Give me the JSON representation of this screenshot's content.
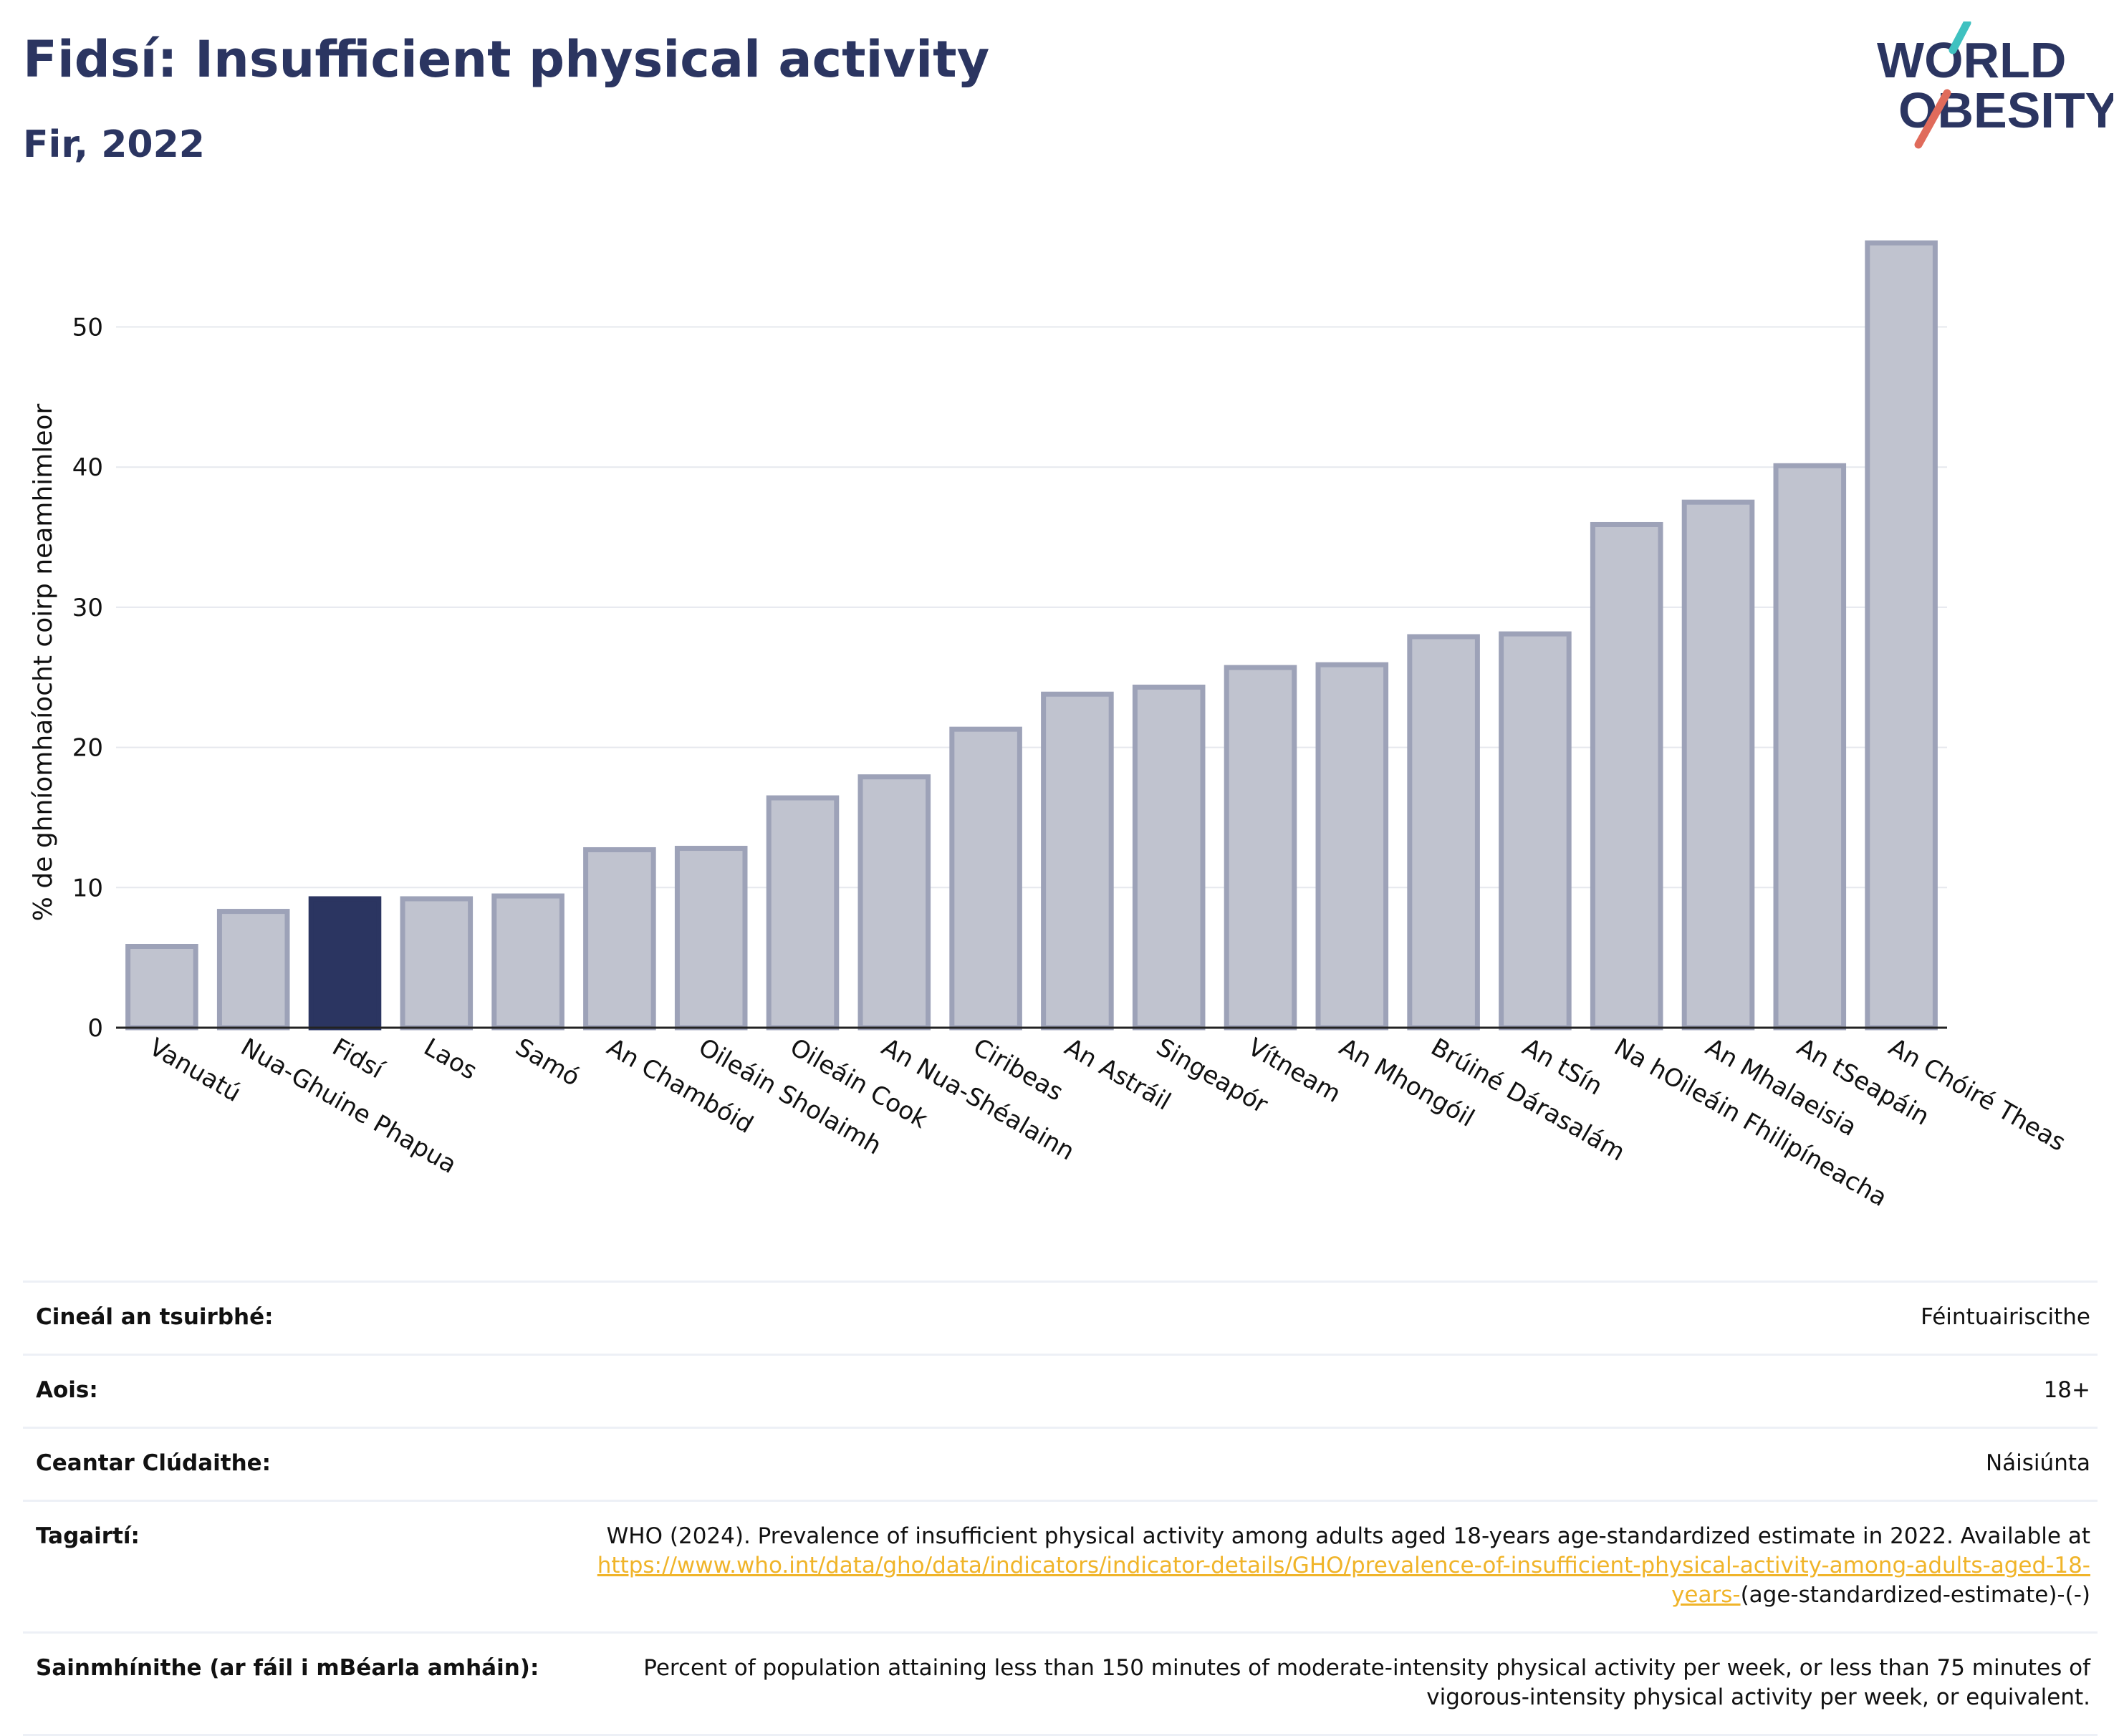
{
  "header": {
    "title": "Fidsí: Insufficient physical activity",
    "subtitle": "Fir, 2022",
    "logo": {
      "line1": "WORLD",
      "line2": "OBESITY",
      "text_color": "#2b3561",
      "accent_colors": [
        "#e06b5b",
        "#3fc1c0"
      ]
    }
  },
  "chart_data": {
    "type": "bar",
    "ylabel": "% de ghníomhaíocht coirp neamhimleor",
    "xlabel": "",
    "ylim": [
      0,
      58
    ],
    "yticks": [
      0,
      10,
      20,
      30,
      40,
      50
    ],
    "grid": true,
    "highlight_category": "Fidsí",
    "colors": {
      "bar": "#c0c3cf",
      "bar_border": "#9da2b8",
      "highlight": "#2b3561"
    },
    "categories": [
      "Vanuatú",
      "Nua-Ghuine Phapua",
      "Fidsí",
      "Laos",
      "Samó",
      "An Chambóid",
      "Oileáin Sholaimh",
      "Oileáin Cook",
      "An Nua-Shéalainn",
      "Ciribeas",
      "An Astráil",
      "Singeapór",
      "Vítneam",
      "An Mhongóil",
      "Brúiné Dárasalám",
      "An tSín",
      "Na hOileáin Fhilipíneacha",
      "An Mhalaeisia",
      "An tSeapáin",
      "An Chóiré Theas"
    ],
    "values": [
      5.8,
      8.3,
      9.2,
      9.2,
      9.4,
      12.7,
      12.8,
      16.4,
      17.9,
      21.3,
      23.8,
      24.3,
      25.7,
      25.9,
      27.9,
      28.1,
      35.9,
      37.5,
      40.1,
      56.0
    ]
  },
  "meta": {
    "rows": [
      {
        "label": "Cineál an tsuirbhé:",
        "value": "Féintuairiscithe"
      },
      {
        "label": "Aois:",
        "value": "18+"
      },
      {
        "label": "Ceantar Clúdaithe:",
        "value": "Náisiúnta"
      }
    ],
    "references": {
      "label": "Tagairtí:",
      "text": "WHO (2024). Prevalence of insufficient physical activity among adults aged 18-years age-standardized estimate in 2022. Available at",
      "link": "https://www.who.int/data/gho/data/indicators/indicator-details/GHO/prevalence-of-insufficient-physical-activity-among-adults-aged-18-years-",
      "suffix": "(age-standardized-estimate)-(-)"
    },
    "definitions": {
      "label": "Sainmhínithe (ar fáil i mBéarla amháin):",
      "value": "Percent of population attaining less than 150 minutes of moderate-intensity physical activity per week, or less than 75 minutes of vigorous-intensity physical activity per week, or equivalent."
    }
  }
}
